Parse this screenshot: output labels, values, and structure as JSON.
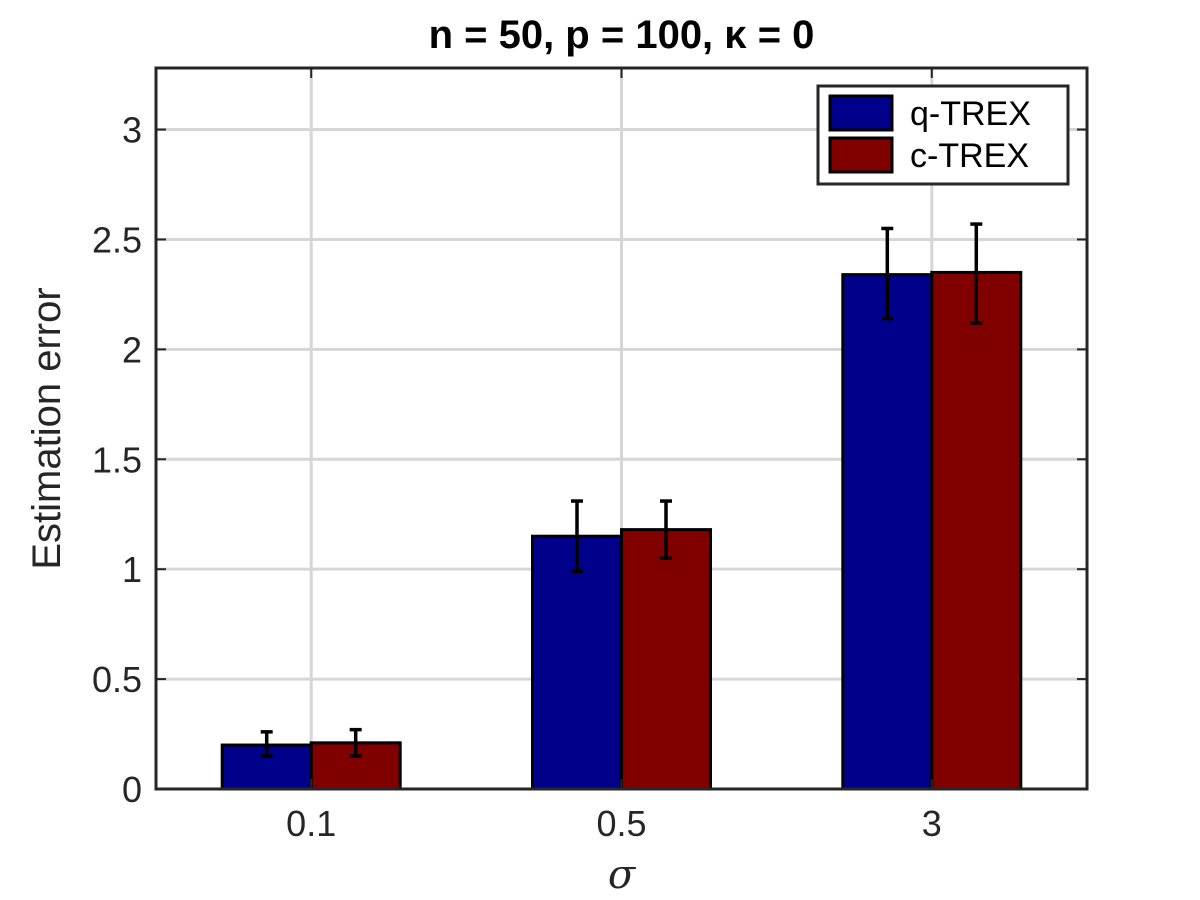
{
  "chart_data": {
    "type": "bar",
    "title": "n = 50, p = 100, κ = 0",
    "xlabel": "σ",
    "ylabel": "Estimation error",
    "categories": [
      "0.1",
      "0.5",
      "3"
    ],
    "series": [
      {
        "name": "q-TREX",
        "color": "#00008b",
        "values": [
          0.2,
          1.15,
          2.34
        ],
        "error_low": [
          0.15,
          0.99,
          2.14
        ],
        "error_high": [
          0.26,
          1.31,
          2.55
        ]
      },
      {
        "name": "c-TREX",
        "color": "#800000",
        "values": [
          0.21,
          1.18,
          2.35
        ],
        "error_low": [
          0.15,
          1.05,
          2.12
        ],
        "error_high": [
          0.27,
          1.31,
          2.57
        ]
      }
    ],
    "ylim": [
      0,
      3.28
    ],
    "yticks": [
      0,
      0.5,
      1,
      1.5,
      2,
      2.5,
      3
    ],
    "ytick_labels": [
      "0",
      "0.5",
      "1",
      "1.5",
      "2",
      "2.5",
      "3"
    ],
    "grid": true,
    "legend_position": "top-right"
  }
}
